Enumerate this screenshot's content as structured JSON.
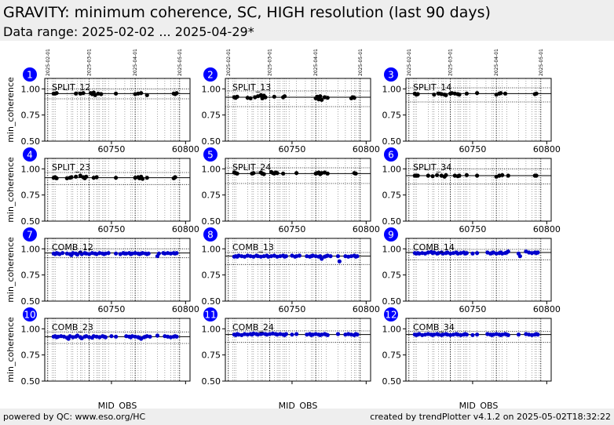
{
  "header": {
    "title": "GRAVITY: minimum coherence, SC, HIGH resolution (last 90 days)",
    "subtitle": "Data range: 2025-02-02 ... 2025-04-29*"
  },
  "footer": {
    "left": "powered by QC: www.eso.org/HC",
    "right": "created by trendPlotter v4.1.2 on 2025-05-02T18:32:22"
  },
  "colors": {
    "split": "#000000",
    "comb": "#0000cc",
    "badge": "#0000ff",
    "header_bg": "#eeeeee"
  },
  "chart_data": {
    "type": "scatter",
    "xlabel": "MJD_OBS",
    "ylabel": "min_coherence",
    "xlim": [
      60705,
      60803
    ],
    "ylim": [
      0.5,
      1.1
    ],
    "x_ticks": [
      60750,
      60800
    ],
    "y_ticks": [
      "0.50",
      "0.75",
      "1.00"
    ],
    "date_markers": [
      {
        "label": "2025-02-01",
        "mjd": 60707
      },
      {
        "label": "2025-03-01",
        "mjd": 60735
      },
      {
        "label": "2025-04-01",
        "mjd": 60766
      },
      {
        "label": "2025-05-01",
        "mjd": 60796
      }
    ],
    "obs_x": [
      60710,
      60711,
      60712,
      60720,
      60723,
      60724,
      60727,
      60729,
      60730,
      60732,
      60735,
      60738,
      60740,
      60741,
      60742,
      60744,
      60745,
      60746,
      60748,
      60753,
      60759,
      60763,
      60764,
      60766,
      60768,
      60770,
      60773,
      60781,
      60786,
      60790,
      60792,
      60793,
      60795
    ],
    "series": [
      {
        "name": "SPLIT_12",
        "kind": "split",
        "median": 0.955,
        "upper": 1.0,
        "lower": 0.905,
        "x": [
          60711,
          60712,
          60713,
          60726,
          60729,
          60731,
          60736,
          60737,
          60738,
          60739,
          60741,
          60743,
          60753,
          60766,
          60768,
          60770,
          60774,
          60792,
          60793,
          60794
        ],
        "y": [
          0.955,
          0.955,
          0.96,
          0.955,
          0.955,
          0.96,
          0.96,
          0.95,
          0.965,
          0.94,
          0.955,
          0.95,
          0.955,
          0.95,
          0.955,
          0.96,
          0.94,
          0.955,
          0.95,
          0.96
        ]
      },
      {
        "name": "SPLIT_13",
        "kind": "split",
        "median": 0.92,
        "upper": 0.98,
        "lower": 0.83,
        "x": [
          60711,
          60712,
          60713,
          60720,
          60722,
          60725,
          60727,
          60729,
          60730,
          60731,
          60732,
          60738,
          60744,
          60745,
          60766,
          60767,
          60768,
          60769,
          60770,
          60772,
          60774,
          60790,
          60791,
          60792
        ],
        "y": [
          0.92,
          0.915,
          0.925,
          0.915,
          0.91,
          0.92,
          0.93,
          0.94,
          0.91,
          0.935,
          0.92,
          0.925,
          0.92,
          0.93,
          0.91,
          0.925,
          0.9,
          0.93,
          0.895,
          0.92,
          0.915,
          0.91,
          0.92,
          0.915
        ]
      },
      {
        "name": "SPLIT_14",
        "kind": "split",
        "median": 0.955,
        "upper": 1.01,
        "lower": 0.875,
        "x": [
          60711,
          60712,
          60713,
          60724,
          60727,
          60729,
          60731,
          60732,
          60735,
          60736,
          60738,
          60740,
          60741,
          60746,
          60753,
          60766,
          60768,
          60769,
          60772,
          60792,
          60793
        ],
        "y": [
          0.955,
          0.945,
          0.95,
          0.945,
          0.955,
          0.95,
          0.945,
          0.94,
          0.955,
          0.96,
          0.955,
          0.95,
          0.945,
          0.955,
          0.96,
          0.945,
          0.955,
          0.96,
          0.955,
          0.95,
          0.955
        ]
      },
      {
        "name": "SPLIT_23",
        "kind": "split",
        "median": 0.915,
        "upper": 0.965,
        "lower": 0.85,
        "x": [
          60711,
          60712,
          60713,
          60720,
          60722,
          60723,
          60726,
          60729,
          60731,
          60732,
          60733,
          60738,
          60740,
          60753,
          60766,
          60768,
          60769,
          60770,
          60771,
          60774,
          60792,
          60793
        ],
        "y": [
          0.915,
          0.92,
          0.91,
          0.91,
          0.915,
          0.92,
          0.925,
          0.935,
          0.92,
          0.91,
          0.925,
          0.915,
          0.92,
          0.915,
          0.915,
          0.92,
          0.91,
          0.925,
          0.905,
          0.915,
          0.91,
          0.92
        ]
      },
      {
        "name": "SPLIT_24",
        "kind": "split",
        "median": 0.955,
        "upper": 1.01,
        "lower": 0.86,
        "x": [
          60711,
          60712,
          60713,
          60723,
          60724,
          60729,
          60730,
          60731,
          60736,
          60737,
          60738,
          60739,
          60740,
          60744,
          60753,
          60766,
          60767,
          60768,
          60769,
          60770,
          60772,
          60774,
          60792,
          60793
        ],
        "y": [
          0.965,
          0.96,
          0.955,
          0.955,
          0.96,
          0.965,
          0.955,
          0.95,
          0.97,
          0.96,
          0.955,
          0.965,
          0.96,
          0.955,
          0.96,
          0.955,
          0.96,
          0.965,
          0.95,
          0.96,
          0.965,
          0.955,
          0.96,
          0.955
        ]
      },
      {
        "name": "SPLIT_34",
        "kind": "split",
        "median": 0.935,
        "upper": 1.0,
        "lower": 0.855,
        "x": [
          60711,
          60712,
          60713,
          60720,
          60723,
          60726,
          60729,
          60731,
          60732,
          60738,
          60740,
          60741,
          60746,
          60753,
          60766,
          60768,
          60770,
          60774,
          60792,
          60793
        ],
        "y": [
          0.935,
          0.935,
          0.935,
          0.935,
          0.93,
          0.94,
          0.935,
          0.925,
          0.94,
          0.935,
          0.93,
          0.935,
          0.94,
          0.935,
          0.925,
          0.935,
          0.94,
          0.935,
          0.935,
          0.935
        ]
      },
      {
        "name": "COMB_12",
        "kind": "comb",
        "median": 0.96,
        "upper": 1.0,
        "lower": 0.915,
        "x": [
          60711,
          60712,
          60713,
          60714,
          60715,
          60717,
          60720,
          60722,
          60723,
          60724,
          60726,
          60727,
          60729,
          60730,
          60732,
          60733,
          60735,
          60737,
          60739,
          60740,
          60742,
          60744,
          60745,
          60746,
          60748,
          60753,
          60756,
          60758,
          60759,
          60760,
          60762,
          60763,
          60764,
          60766,
          60768,
          60769,
          60770,
          60771,
          60773,
          60774,
          60775,
          60781,
          60782,
          60785,
          60786,
          60788,
          60790,
          60792,
          60793,
          60794
        ],
        "y": [
          0.955,
          0.95,
          0.96,
          0.955,
          0.95,
          0.96,
          0.955,
          0.95,
          0.94,
          0.96,
          0.955,
          0.945,
          0.965,
          0.95,
          0.96,
          0.955,
          0.95,
          0.96,
          0.955,
          0.95,
          0.96,
          0.955,
          0.95,
          0.955,
          0.96,
          0.955,
          0.95,
          0.96,
          0.955,
          0.955,
          0.96,
          0.95,
          0.955,
          0.96,
          0.955,
          0.95,
          0.955,
          0.96,
          0.955,
          0.95,
          0.955,
          0.93,
          0.955,
          0.96,
          0.955,
          0.96,
          0.955,
          0.96,
          0.955,
          0.96
        ]
      },
      {
        "name": "COMB_13",
        "kind": "comb",
        "median": 0.93,
        "upper": 0.965,
        "lower": 0.85,
        "x": [
          60711,
          60712,
          60713,
          60714,
          60716,
          60718,
          60720,
          60722,
          60724,
          60726,
          60727,
          60729,
          60731,
          60733,
          60734,
          60736,
          60738,
          60740,
          60742,
          60744,
          60745,
          60746,
          60750,
          60752,
          60753,
          60755,
          60760,
          60762,
          60763,
          60764,
          60766,
          60768,
          60769,
          60770,
          60772,
          60773,
          60774,
          60776,
          60781,
          60782,
          60786,
          60788,
          60790,
          60792,
          60793,
          60794
        ],
        "y": [
          0.925,
          0.93,
          0.925,
          0.935,
          0.93,
          0.925,
          0.935,
          0.93,
          0.925,
          0.935,
          0.93,
          0.925,
          0.93,
          0.935,
          0.925,
          0.93,
          0.935,
          0.925,
          0.93,
          0.935,
          0.925,
          0.93,
          0.935,
          0.925,
          0.93,
          0.935,
          0.93,
          0.925,
          0.93,
          0.935,
          0.93,
          0.925,
          0.93,
          0.905,
          0.925,
          0.93,
          0.935,
          0.93,
          0.93,
          0.88,
          0.93,
          0.925,
          0.93,
          0.935,
          0.925,
          0.93
        ]
      },
      {
        "name": "COMB_14",
        "kind": "comb",
        "median": 0.965,
        "upper": 0.995,
        "lower": 0.895,
        "x": [
          60711,
          60712,
          60713,
          60714,
          60716,
          60718,
          60720,
          60722,
          60723,
          60724,
          60726,
          60727,
          60729,
          60730,
          60732,
          60733,
          60735,
          60737,
          60739,
          60740,
          60742,
          60744,
          60745,
          60746,
          60750,
          60753,
          60760,
          60762,
          60763,
          60764,
          60766,
          60768,
          60769,
          60770,
          60772,
          60773,
          60774,
          60781,
          60782,
          60786,
          60788,
          60790,
          60792,
          60793,
          60794
        ],
        "y": [
          0.96,
          0.955,
          0.96,
          0.955,
          0.96,
          0.955,
          0.965,
          0.97,
          0.96,
          0.965,
          0.955,
          0.96,
          0.965,
          0.955,
          0.96,
          0.965,
          0.955,
          0.96,
          0.965,
          0.955,
          0.96,
          0.965,
          0.955,
          0.96,
          0.955,
          0.96,
          0.965,
          0.955,
          0.96,
          0.965,
          0.955,
          0.96,
          0.965,
          0.955,
          0.96,
          0.965,
          0.975,
          0.955,
          0.93,
          0.975,
          0.965,
          0.96,
          0.965,
          0.96,
          0.965
        ]
      },
      {
        "name": "COMB_23",
        "kind": "comb",
        "median": 0.925,
        "upper": 0.97,
        "lower": 0.86,
        "x": [
          60711,
          60712,
          60713,
          60714,
          60716,
          60718,
          60720,
          60721,
          60722,
          60724,
          60726,
          60727,
          60729,
          60730,
          60732,
          60733,
          60735,
          60737,
          60738,
          60740,
          60742,
          60744,
          60745,
          60746,
          60750,
          60753,
          60760,
          60762,
          60763,
          60764,
          60766,
          60768,
          60769,
          60770,
          60772,
          60773,
          60774,
          60776,
          60781,
          60786,
          60788,
          60790,
          60792,
          60793,
          60794
        ],
        "y": [
          0.925,
          0.93,
          0.92,
          0.925,
          0.93,
          0.925,
          0.915,
          0.905,
          0.93,
          0.92,
          0.925,
          0.935,
          0.92,
          0.91,
          0.925,
          0.93,
          0.92,
          0.915,
          0.93,
          0.925,
          0.92,
          0.93,
          0.925,
          0.92,
          0.93,
          0.925,
          0.93,
          0.925,
          0.92,
          0.93,
          0.925,
          0.92,
          0.915,
          0.905,
          0.92,
          0.925,
          0.93,
          0.925,
          0.935,
          0.93,
          0.925,
          0.92,
          0.925,
          0.93,
          0.925
        ]
      },
      {
        "name": "COMB_24",
        "kind": "comb",
        "median": 0.945,
        "upper": 0.98,
        "lower": 0.87,
        "x": [
          60711,
          60712,
          60713,
          60714,
          60716,
          60718,
          60720,
          60722,
          60723,
          60724,
          60726,
          60727,
          60729,
          60730,
          60732,
          60733,
          60735,
          60737,
          60739,
          60740,
          60742,
          60744,
          60745,
          60746,
          60750,
          60753,
          60760,
          60762,
          60763,
          60764,
          60766,
          60768,
          60769,
          60770,
          60772,
          60773,
          60774,
          60781,
          60786,
          60788,
          60790,
          60792,
          60793,
          60794
        ],
        "y": [
          0.945,
          0.94,
          0.95,
          0.945,
          0.94,
          0.95,
          0.945,
          0.95,
          0.945,
          0.955,
          0.95,
          0.945,
          0.95,
          0.955,
          0.95,
          0.945,
          0.95,
          0.955,
          0.95,
          0.945,
          0.95,
          0.945,
          0.94,
          0.95,
          0.945,
          0.95,
          0.945,
          0.95,
          0.94,
          0.945,
          0.95,
          0.945,
          0.94,
          0.945,
          0.95,
          0.945,
          0.94,
          0.95,
          0.945,
          0.95,
          0.945,
          0.94,
          0.95,
          0.945
        ]
      },
      {
        "name": "COMB_34",
        "kind": "comb",
        "median": 0.945,
        "upper": 0.975,
        "lower": 0.87,
        "x": [
          60711,
          60712,
          60713,
          60714,
          60716,
          60718,
          60720,
          60722,
          60723,
          60724,
          60726,
          60727,
          60729,
          60730,
          60732,
          60733,
          60735,
          60737,
          60739,
          60740,
          60742,
          60744,
          60745,
          60746,
          60750,
          60753,
          60760,
          60762,
          60763,
          60764,
          60766,
          60768,
          60769,
          60770,
          60772,
          60773,
          60774,
          60781,
          60786,
          60788,
          60790,
          60792,
          60793,
          60794
        ],
        "y": [
          0.945,
          0.94,
          0.945,
          0.95,
          0.94,
          0.945,
          0.95,
          0.945,
          0.94,
          0.945,
          0.95,
          0.945,
          0.94,
          0.945,
          0.95,
          0.945,
          0.94,
          0.945,
          0.95,
          0.945,
          0.94,
          0.945,
          0.95,
          0.945,
          0.94,
          0.945,
          0.95,
          0.945,
          0.94,
          0.945,
          0.95,
          0.945,
          0.94,
          0.945,
          0.95,
          0.945,
          0.94,
          0.945,
          0.95,
          0.945,
          0.94,
          0.945,
          0.95,
          0.945
        ]
      }
    ]
  }
}
